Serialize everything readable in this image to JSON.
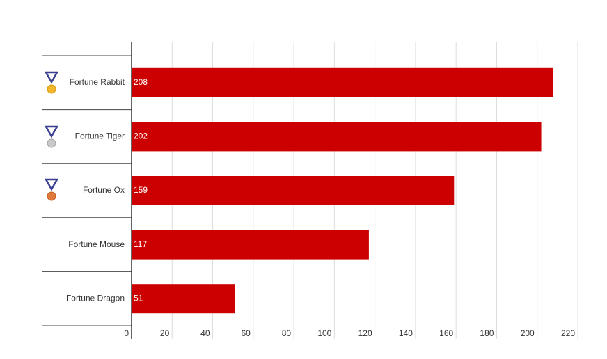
{
  "chart_data": {
    "type": "hbar",
    "categories": [
      "Fortune Rabbit",
      "Fortune Tiger",
      "Fortune Ox",
      "Fortune Mouse",
      "Fortune Dragon"
    ],
    "values": [
      208,
      202,
      159,
      117,
      51
    ],
    "color": "#cc0000",
    "xlim": [
      0,
      220
    ],
    "xticks": [
      0,
      20,
      40,
      60,
      80,
      100,
      120,
      140,
      160,
      180,
      200,
      220
    ],
    "grid": true
  }
}
